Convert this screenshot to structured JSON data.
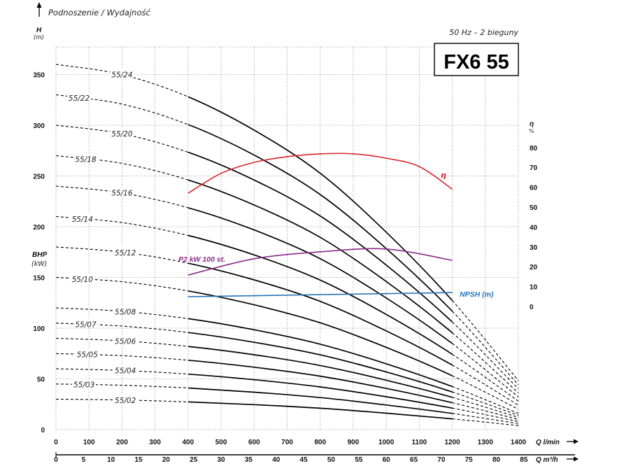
{
  "header": {
    "title": "Podnoszenie / Wydajność",
    "frequency": "50 Hz – 2 bieguny",
    "model": "FX6 55"
  },
  "chart_data": {
    "type": "line",
    "title": "FX6 55",
    "subtitle": "50 Hz – 2 bieguny",
    "ylabel": "H",
    "ylabel_unit": "(m)",
    "ylabel2": "BHP",
    "ylabel2_unit": "(kW)",
    "y_right_label": "η",
    "y_right_unit": "%",
    "xlabel": "Q l/min",
    "xlabel2": "Q m³/h",
    "xlim": [
      0,
      1400
    ],
    "ylim": [
      0,
      378
    ],
    "y_right_lim": [
      0,
      80
    ],
    "grid": true,
    "x_ticks": [
      0,
      100,
      200,
      300,
      400,
      500,
      600,
      700,
      800,
      900,
      1000,
      1100,
      1200,
      1300,
      1400
    ],
    "x2_ticks": [
      0,
      5,
      10,
      15,
      20,
      25,
      30,
      35,
      40,
      45,
      50,
      55,
      60,
      65,
      70,
      75,
      80,
      85
    ],
    "y_ticks": [
      0,
      50,
      100,
      150,
      200,
      250,
      300,
      350
    ],
    "y_right_ticks": [
      0,
      10,
      20,
      30,
      40,
      50,
      60,
      70,
      80
    ],
    "operating_range": [
      400,
      1200
    ],
    "q": [
      0,
      200,
      400,
      600,
      800,
      1000,
      1200,
      1400
    ],
    "series": [
      {
        "name": "55/24",
        "values": [
          360,
          349.9,
          328.1,
          295.2,
          252.7,
          194.6,
          127.2,
          48.2
        ]
      },
      {
        "name": "55/22",
        "values": [
          330,
          320.8,
          300.7,
          270.6,
          231.7,
          178.4,
          116.6,
          44.2
        ]
      },
      {
        "name": "55/20",
        "values": [
          300,
          291.6,
          273.4,
          246,
          210.6,
          162.2,
          106,
          40.2
        ]
      },
      {
        "name": "55/18",
        "values": [
          270,
          262.4,
          246.1,
          221.4,
          189.5,
          146,
          95.4,
          36.2
        ]
      },
      {
        "name": "55/16",
        "values": [
          240,
          233.3,
          218.7,
          196.8,
          168.5,
          129.8,
          84.8,
          32.2
        ]
      },
      {
        "name": "55/14",
        "values": [
          210,
          204.1,
          191.4,
          172.2,
          147.4,
          113.5,
          74.2,
          28.1
        ]
      },
      {
        "name": "55/12",
        "values": [
          180,
          175,
          164,
          147.6,
          126.4,
          97.3,
          63.6,
          24.1
        ]
      },
      {
        "name": "55/10",
        "values": [
          150,
          145.8,
          136.7,
          123,
          105.3,
          81.1,
          53,
          20.1
        ]
      },
      {
        "name": "55/08",
        "values": [
          120,
          116.6,
          109.4,
          98.4,
          84.2,
          64.9,
          42.4,
          16.1
        ]
      },
      {
        "name": "55/07",
        "values": [
          105,
          102.1,
          95.7,
          86.1,
          73.7,
          56.8,
          37.1,
          14.1
        ]
      },
      {
        "name": "55/06",
        "values": [
          90,
          87.5,
          82,
          73.8,
          63.2,
          48.7,
          31.8,
          12.1
        ]
      },
      {
        "name": "55/05",
        "values": [
          75,
          72.9,
          68.4,
          61.5,
          52.7,
          40.6,
          26.5,
          10.1
        ]
      },
      {
        "name": "55/04",
        "values": [
          60,
          58.3,
          54.7,
          49.2,
          42.1,
          32.4,
          21.2,
          8
        ]
      },
      {
        "name": "55/03",
        "values": [
          45,
          43.7,
          41,
          36.9,
          31.6,
          24.3,
          15.9,
          6
        ]
      },
      {
        "name": "55/02",
        "values": [
          30,
          29.2,
          27.3,
          24.6,
          21.1,
          16.2,
          10.6,
          4
        ]
      }
    ],
    "label_q": [
      200,
      70,
      200,
      90,
      200,
      80,
      210,
      80,
      210,
      90,
      210,
      95,
      210,
      85,
      210
    ],
    "aux_curves": [
      {
        "name": "η",
        "color": "#d7262e",
        "q": [
          400,
          500,
          600,
          700,
          800,
          900,
          1000,
          1100,
          1200
        ],
        "values": [
          57,
          67,
          72.5,
          75.4,
          76.8,
          76.8,
          74.6,
          70.4,
          59
        ]
      },
      {
        "name": "P2 kW 100 st.",
        "color": "#8b2a8a",
        "q": [
          400,
          600,
          800,
          1000,
          1200
        ],
        "values": [
          15.8,
          24,
          27.5,
          28.9,
          23.2
        ]
      },
      {
        "name": "NPSH (m)",
        "color": "#2a74b8",
        "q": [
          400,
          1200
        ],
        "values": [
          4.9,
          7.0
        ]
      }
    ]
  }
}
